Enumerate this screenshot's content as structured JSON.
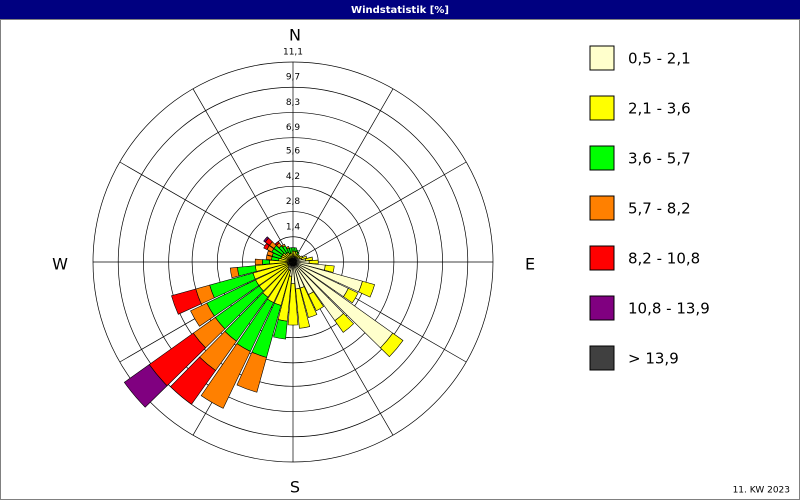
{
  "chart_data": {
    "type": "windrose",
    "title": "Windstatistik [%]",
    "footer": "11. KW 2023",
    "compass": [
      "N",
      "E",
      "S",
      "W"
    ],
    "categories": [
      null,
      null,
      null,
      null,
      null,
      null,
      null,
      null,
      null,
      null,
      null,
      null,
      null,
      null,
      null,
      null,
      null,
      null,
      null,
      null,
      null,
      null,
      null,
      null,
      null,
      null,
      null,
      null,
      null,
      null,
      null,
      null,
      null,
      null,
      null,
      null
    ],
    "ylim": [
      0,
      11.1
    ],
    "yticks": [
      {
        "value": 1.4,
        "label": "1,4"
      },
      {
        "value": 2.8,
        "label": "2,8"
      },
      {
        "value": 4.2,
        "label": "4,2"
      },
      {
        "value": 5.6,
        "label": "5,6"
      },
      {
        "value": 6.9,
        "label": "6,9"
      },
      {
        "value": 8.3,
        "label": "8,3"
      },
      {
        "value": 9.7,
        "label": "9,7"
      },
      {
        "value": 11.1,
        "label": "11,1"
      }
    ],
    "series": [
      {
        "name": "0,5 - 2,1",
        "color": "#ffffcc",
        "values": [
          0.3,
          0.3,
          0.3,
          0.3,
          0.3,
          0.3,
          0.4,
          0.5,
          0.7,
          0.9,
          1.8,
          4.0,
          3.4,
          6.8,
          4.0,
          2.0,
          1.5,
          1.5,
          1.2,
          0.8,
          0.5,
          0.5,
          0.4,
          0.3,
          0.3,
          0.3,
          0.3,
          0.3,
          0.2,
          0.2,
          0.2,
          0.2,
          0.2,
          0.2,
          0.2,
          0.2
        ]
      },
      {
        "name": "2,1 - 3,6",
        "color": "#ffff00",
        "values": [
          0.3,
          0.3,
          0.3,
          0.2,
          0.2,
          0.2,
          0.2,
          0.3,
          0.4,
          0.5,
          0.5,
          0.7,
          0.6,
          0.7,
          0.8,
          1.0,
          1.7,
          2.2,
          2.3,
          2.5,
          2.0,
          2.0,
          2.0,
          2.0,
          2.0,
          2.0,
          1.8,
          1.0,
          0.6,
          0.5,
          0.5,
          0.5,
          0.4,
          0.4,
          0.3,
          0.3
        ]
      },
      {
        "name": "3,6 - 5,7",
        "color": "#00ff00",
        "values": [
          0.2,
          0.2,
          0.1,
          0.1,
          0,
          0,
          0,
          0,
          0,
          0,
          0,
          0,
          0,
          0,
          0,
          0,
          0,
          0,
          0,
          1.0,
          3.0,
          3.0,
          3.0,
          3.0,
          3.0,
          2.5,
          1.0,
          0.4,
          0.4,
          0.5,
          0.6,
          0.6,
          0.5,
          0.4,
          0.3,
          0.3
        ]
      },
      {
        "name": "5,7 - 8,2",
        "color": "#ff8000",
        "values": [
          0,
          0,
          0,
          0,
          0,
          0,
          0,
          0,
          0,
          0,
          0,
          0,
          0,
          0,
          0,
          0,
          0,
          0,
          0,
          0,
          2.0,
          3.5,
          2.0,
          1.5,
          1.0,
          0.8,
          0.4,
          0.4,
          0.3,
          0.3,
          0.3,
          0.3,
          0.2,
          0.1,
          0.1,
          0
        ]
      },
      {
        "name": "8,2 - 10,8",
        "color": "#ff0000",
        "values": [
          0,
          0,
          0,
          0,
          0,
          0,
          0,
          0,
          0,
          0,
          0,
          0,
          0,
          0,
          0,
          0,
          0,
          0,
          0,
          0,
          0,
          0,
          2.3,
          3.0,
          0,
          1.4,
          0,
          0,
          0,
          0,
          0.2,
          0.3,
          0.1,
          0,
          0,
          0
        ]
      },
      {
        "name": "10,8 - 13,9",
        "color": "#800080",
        "values": [
          0,
          0,
          0,
          0,
          0,
          0,
          0,
          0,
          0,
          0,
          0,
          0,
          0,
          0,
          0,
          0,
          0,
          0,
          0,
          0,
          0,
          0,
          0,
          1.7,
          0,
          0,
          0,
          0,
          0,
          0,
          0,
          0.1,
          0,
          0,
          0,
          0
        ]
      },
      {
        "name": " > 13,9",
        "color": "#404040",
        "values": [
          0,
          0,
          0,
          0,
          0,
          0,
          0,
          0,
          0,
          0,
          0,
          0,
          0,
          0,
          0,
          0,
          0,
          0,
          0,
          0,
          0,
          0,
          0,
          0,
          0,
          0,
          0,
          0,
          0,
          0,
          0,
          0,
          0,
          0,
          0,
          0
        ]
      }
    ]
  }
}
